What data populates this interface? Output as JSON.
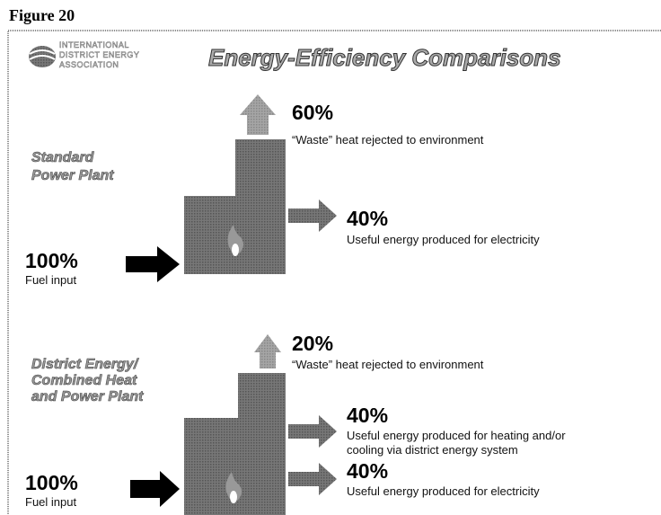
{
  "figure_label": "Figure 20",
  "logo": {
    "lines": [
      "INTERNATIONAL",
      "DISTRICT ENERGY",
      "ASSOCIATION"
    ]
  },
  "title": "Energy-Efficiency Comparisons",
  "standard": {
    "heading": [
      "Standard",
      "Power Plant"
    ],
    "input": {
      "percent": "100%",
      "label": "Fuel input"
    },
    "waste": {
      "percent": "60%",
      "label": "“Waste” heat rejected to environment"
    },
    "electricity": {
      "percent": "40%",
      "label": "Useful energy produced for electricity"
    }
  },
  "chp": {
    "heading": [
      "District Energy/",
      "Combined Heat",
      "and Power Plant"
    ],
    "input": {
      "percent": "100%",
      "label": "Fuel input"
    },
    "waste": {
      "percent": "20%",
      "label": "“Waste” heat rejected to environment"
    },
    "heating": {
      "percent": "40%",
      "label": [
        "Useful energy produced for heating and/or",
        "cooling via district energy system"
      ]
    },
    "electricity": {
      "percent": "40%",
      "label": "Useful energy produced for electricity"
    }
  }
}
